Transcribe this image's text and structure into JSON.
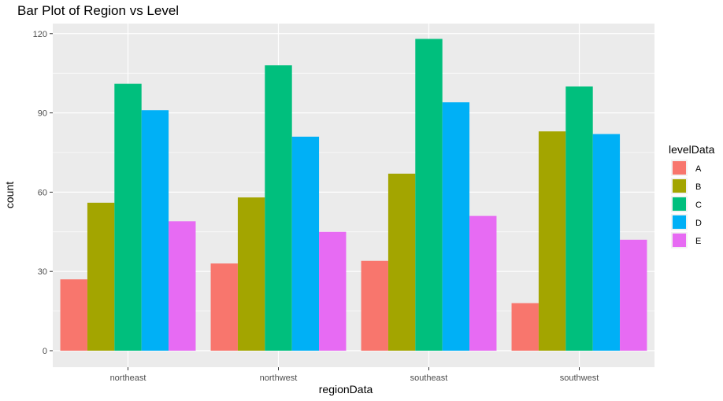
{
  "chart_data": {
    "type": "bar",
    "title": "Bar Plot of Region vs Level",
    "xlabel": "regionData",
    "ylabel": "count",
    "ylim": [
      0,
      125
    ],
    "yticks": [
      0,
      30,
      60,
      90,
      120
    ],
    "categories": [
      "northeast",
      "northwest",
      "southeast",
      "southwest"
    ],
    "legend_title": "levelData",
    "legend_position": "right",
    "grid": true,
    "panel_background": "#ebebeb",
    "series": [
      {
        "name": "A",
        "color": "#f8766d",
        "values": [
          27,
          33,
          34,
          18
        ]
      },
      {
        "name": "B",
        "color": "#a3a500",
        "values": [
          56,
          58,
          67,
          83
        ]
      },
      {
        "name": "C",
        "color": "#00bf7d",
        "values": [
          101,
          108,
          118,
          100
        ]
      },
      {
        "name": "D",
        "color": "#00b0f6",
        "values": [
          91,
          81,
          94,
          82
        ]
      },
      {
        "name": "E",
        "color": "#e76bf3",
        "values": [
          49,
          45,
          51,
          42
        ]
      }
    ]
  }
}
